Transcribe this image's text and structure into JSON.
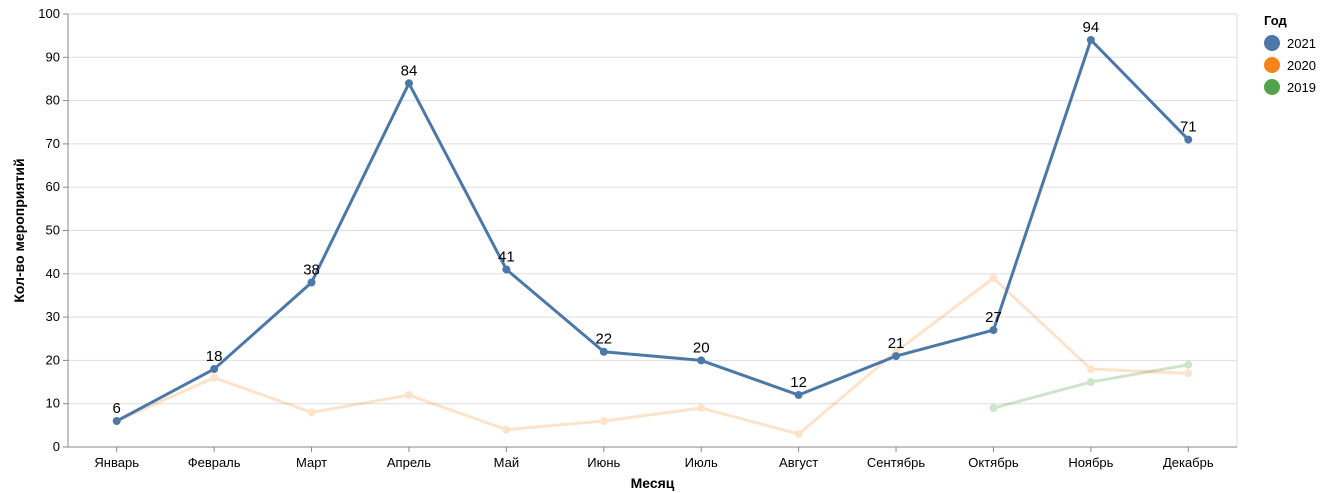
{
  "chart_data": {
    "type": "line",
    "xlabel": "Месяц",
    "ylabel": "Кол-во мероприятий",
    "ylim": [
      0,
      100
    ],
    "yticks": [
      0,
      10,
      20,
      30,
      40,
      50,
      60,
      70,
      80,
      90,
      100
    ],
    "grid": true,
    "categories": [
      "Январь",
      "Февраль",
      "Март",
      "Апрель",
      "Май",
      "Июнь",
      "Июль",
      "Август",
      "Сентябрь",
      "Октябрь",
      "Ноябрь",
      "Декабрь"
    ],
    "legend": {
      "title": "Год",
      "position": "top-right"
    },
    "series": [
      {
        "name": "2021",
        "color": "#4c78a8",
        "values": [
          6,
          18,
          38,
          84,
          41,
          22,
          20,
          12,
          21,
          27,
          94,
          71
        ],
        "data_labels": true,
        "opacity": 1
      },
      {
        "name": "2020",
        "color": "#f58518",
        "values": [
          6,
          16,
          8,
          12,
          4,
          6,
          9,
          3,
          22,
          39,
          18,
          17
        ],
        "data_labels": false,
        "opacity": 0.22
      },
      {
        "name": "2019",
        "color": "#54a24b",
        "values": [
          null,
          null,
          null,
          null,
          null,
          null,
          null,
          null,
          null,
          9,
          15,
          19
        ],
        "data_labels": false,
        "opacity": 0.28
      }
    ]
  }
}
